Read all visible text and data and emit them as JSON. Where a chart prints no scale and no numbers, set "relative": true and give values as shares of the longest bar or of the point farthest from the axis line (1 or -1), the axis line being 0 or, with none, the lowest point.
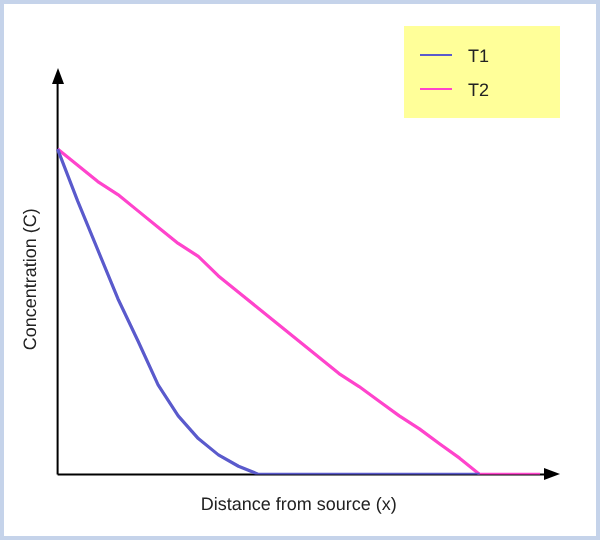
{
  "chart_data": {
    "type": "line",
    "relative": true,
    "xlabel": "Distance from source (x)",
    "ylabel": "Concentration (C)",
    "categories": [
      null,
      null,
      null,
      null,
      null,
      null,
      null,
      null,
      null,
      null,
      null,
      null,
      null,
      null,
      null,
      null,
      null,
      null,
      null,
      null,
      null,
      null,
      null,
      null,
      null
    ],
    "series": [
      {
        "name": "T1",
        "color": "#5a5acc",
        "values": [
          1,
          0.84,
          0.69,
          0.54,
          0.41,
          0.275,
          0.18,
          0.11,
          0.06,
          0.025,
          0,
          0,
          0,
          0,
          0,
          0,
          0,
          0,
          0,
          0,
          0,
          0,
          null,
          null,
          null
        ]
      },
      {
        "name": "T2",
        "color": "#ff44cc",
        "values": [
          1,
          0.95,
          0.9,
          0.86,
          0.81,
          0.76,
          0.71,
          0.67,
          0.61,
          0.56,
          0.51,
          0.46,
          0.41,
          0.36,
          0.31,
          0.27,
          0.225,
          0.18,
          0.14,
          0.094,
          0.05,
          0,
          0,
          0,
          0
        ]
      }
    ],
    "legend": "top right",
    "grid": false,
    "marker": "none",
    "line_style": "solid"
  }
}
